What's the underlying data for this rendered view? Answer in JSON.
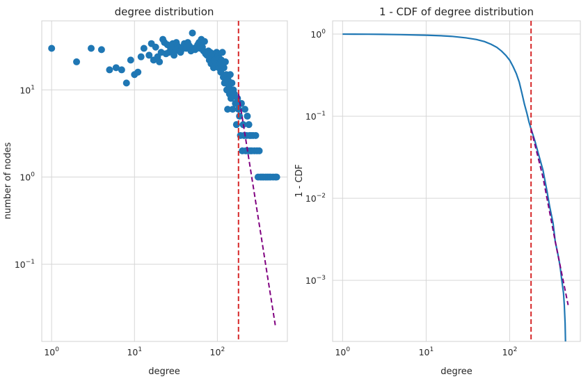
{
  "chart_data": [
    {
      "type": "scatter",
      "title": "degree distribution",
      "xlabel": "degree",
      "ylabel": "number of nodes",
      "xscale": "log",
      "yscale": "log",
      "xlim": [
        0.76,
        700
      ],
      "ylim": [
        0.013,
        62
      ],
      "grid": true,
      "xticks": [
        {
          "base": "10",
          "exp": "0",
          "value": 1
        },
        {
          "base": "10",
          "exp": "1",
          "value": 10
        },
        {
          "base": "10",
          "exp": "2",
          "value": 100
        }
      ],
      "yticks": [
        {
          "base": "10",
          "exp": "−1",
          "value": 0.1
        },
        {
          "base": "10",
          "exp": "0",
          "value": 1
        },
        {
          "base": "10",
          "exp": "1",
          "value": 10
        }
      ],
      "colors": {
        "points": "#1f77b4",
        "cutoff": "#d62728",
        "fit": "#800080"
      },
      "points": [
        [
          1,
          30
        ],
        [
          2,
          21
        ],
        [
          3,
          30
        ],
        [
          4,
          29
        ],
        [
          5,
          17
        ],
        [
          6,
          18
        ],
        [
          7,
          17
        ],
        [
          8,
          12
        ],
        [
          9,
          22
        ],
        [
          10,
          15
        ],
        [
          11,
          16
        ],
        [
          12,
          24
        ],
        [
          13,
          30
        ],
        [
          15,
          25
        ],
        [
          16,
          34
        ],
        [
          17,
          22
        ],
        [
          18,
          31
        ],
        [
          19,
          24
        ],
        [
          20,
          21
        ],
        [
          21,
          27
        ],
        [
          22,
          38
        ],
        [
          23,
          35
        ],
        [
          24,
          26
        ],
        [
          25,
          33
        ],
        [
          26,
          27
        ],
        [
          27,
          31
        ],
        [
          28,
          30
        ],
        [
          29,
          34
        ],
        [
          30,
          25
        ],
        [
          31,
          28
        ],
        [
          32,
          35
        ],
        [
          33,
          32
        ],
        [
          34,
          30
        ],
        [
          35,
          28
        ],
        [
          36,
          27
        ],
        [
          37,
          29
        ],
        [
          38,
          31
        ],
        [
          40,
          34
        ],
        [
          42,
          30
        ],
        [
          44,
          35
        ],
        [
          46,
          32
        ],
        [
          48,
          28
        ],
        [
          50,
          45
        ],
        [
          52,
          30
        ],
        [
          54,
          29
        ],
        [
          56,
          31
        ],
        [
          58,
          33
        ],
        [
          60,
          35
        ],
        [
          62,
          30
        ],
        [
          64,
          38
        ],
        [
          66,
          31
        ],
        [
          68,
          28
        ],
        [
          70,
          36
        ],
        [
          72,
          26
        ],
        [
          75,
          25
        ],
        [
          78,
          28
        ],
        [
          80,
          22
        ],
        [
          82,
          27
        ],
        [
          84,
          20
        ],
        [
          86,
          24
        ],
        [
          88,
          26
        ],
        [
          90,
          18
        ],
        [
          92,
          22
        ],
        [
          95,
          19
        ],
        [
          98,
          27
        ],
        [
          100,
          20
        ],
        [
          102,
          25
        ],
        [
          104,
          18
        ],
        [
          106,
          23
        ],
        [
          108,
          20
        ],
        [
          110,
          16
        ],
        [
          112,
          22
        ],
        [
          115,
          27
        ],
        [
          118,
          14
        ],
        [
          120,
          18
        ],
        [
          122,
          12
        ],
        [
          125,
          21
        ],
        [
          128,
          15
        ],
        [
          130,
          10
        ],
        [
          133,
          6
        ],
        [
          135,
          13
        ],
        [
          138,
          11
        ],
        [
          140,
          9
        ],
        [
          143,
          15
        ],
        [
          146,
          8
        ],
        [
          150,
          12
        ],
        [
          153,
          6
        ],
        [
          156,
          10
        ],
        [
          160,
          9
        ],
        [
          165,
          7
        ],
        [
          170,
          4
        ],
        [
          175,
          8
        ],
        [
          180,
          6
        ],
        [
          185,
          5
        ],
        [
          190,
          3
        ],
        [
          195,
          7
        ],
        [
          200,
          2
        ],
        [
          205,
          4
        ],
        [
          210,
          3
        ],
        [
          215,
          6
        ],
        [
          220,
          2
        ],
        [
          225,
          3
        ],
        [
          230,
          5
        ],
        [
          235,
          2
        ],
        [
          240,
          4
        ],
        [
          245,
          3
        ],
        [
          250,
          2
        ],
        [
          255,
          3
        ],
        [
          260,
          2
        ],
        [
          270,
          3
        ],
        [
          280,
          2
        ],
        [
          290,
          3
        ],
        [
          300,
          2
        ],
        [
          310,
          1
        ],
        [
          320,
          2
        ],
        [
          330,
          1
        ],
        [
          345,
          1
        ],
        [
          360,
          1
        ],
        [
          380,
          1
        ],
        [
          400,
          1
        ],
        [
          420,
          1
        ],
        [
          440,
          1
        ],
        [
          470,
          1
        ],
        [
          500,
          1
        ],
        [
          520,
          1
        ]
      ],
      "cutoff_x": 180,
      "fit_line": [
        [
          180,
          9
        ],
        [
          500,
          0.02
        ]
      ]
    },
    {
      "type": "line",
      "title": "1 - CDF of degree distribution",
      "xlabel": "degree",
      "ylabel": "1 - CDF",
      "xscale": "log",
      "yscale": "log",
      "xlim": [
        0.76,
        700
      ],
      "ylim": [
        0.00018,
        1.45
      ],
      "grid": true,
      "xticks": [
        {
          "base": "10",
          "exp": "0",
          "value": 1
        },
        {
          "base": "10",
          "exp": "1",
          "value": 10
        },
        {
          "base": "10",
          "exp": "2",
          "value": 100
        }
      ],
      "yticks": [
        {
          "base": "10",
          "exp": "−3",
          "value": 0.001
        },
        {
          "base": "10",
          "exp": "−2",
          "value": 0.01
        },
        {
          "base": "10",
          "exp": "−1",
          "value": 0.1
        },
        {
          "base": "10",
          "exp": "0",
          "value": 1
        }
      ],
      "colors": {
        "line": "#1f77b4",
        "cutoff": "#d62728",
        "fit": "#800080"
      },
      "series": [
        {
          "x": [
            1,
            2,
            3,
            5,
            8,
            10,
            15,
            20,
            30,
            40,
            50,
            60,
            70,
            80,
            90,
            100,
            110,
            120,
            130,
            140,
            150,
            160,
            170,
            180,
            200,
            220,
            250,
            280,
            300,
            330,
            350,
            380,
            400,
            420,
            440,
            450,
            460,
            465
          ],
          "y": [
            1.0,
            0.997,
            0.993,
            0.985,
            0.975,
            0.97,
            0.955,
            0.94,
            0.9,
            0.86,
            0.81,
            0.75,
            0.69,
            0.62,
            0.55,
            0.48,
            0.4,
            0.33,
            0.26,
            0.19,
            0.14,
            0.11,
            0.085,
            0.07,
            0.05,
            0.035,
            0.022,
            0.012,
            0.008,
            0.005,
            0.003,
            0.002,
            0.0015,
            0.001,
            0.0007,
            0.0005,
            0.0003,
            0.00018
          ]
        }
      ],
      "cutoff_x": 180,
      "fit_line": [
        [
          180,
          0.07
        ],
        [
          250,
          0.018
        ],
        [
          350,
          0.003
        ],
        [
          500,
          0.0005
        ]
      ]
    }
  ]
}
